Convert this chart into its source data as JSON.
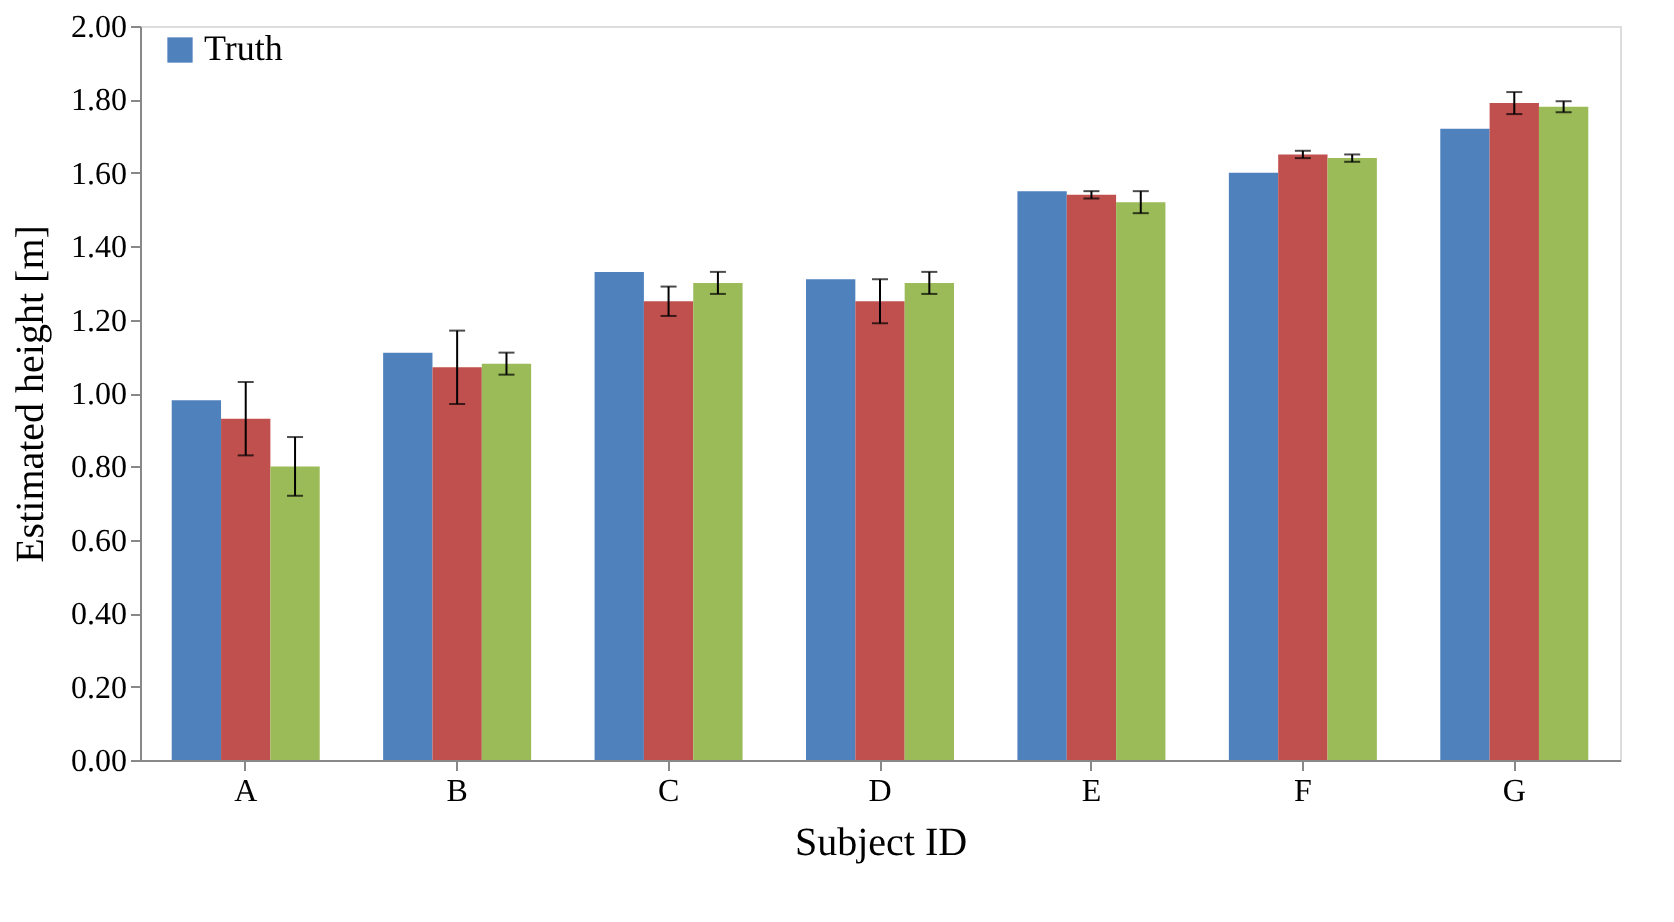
{
  "chart_data": {
    "type": "bar",
    "xlabel": "Subject ID",
    "ylabel": "Estimated height [m]",
    "categories": [
      "A",
      "B",
      "C",
      "D",
      "E",
      "F",
      "G"
    ],
    "series": [
      {
        "name": "Truth",
        "color": "#4f81bd",
        "values": [
          0.98,
          1.11,
          1.33,
          1.31,
          1.55,
          1.6,
          1.72
        ]
      },
      {
        "color": "#c0504d",
        "values": [
          0.93,
          1.07,
          1.25,
          1.25,
          1.54,
          1.65,
          1.79
        ],
        "errors": [
          0.1,
          0.1,
          0.04,
          0.06,
          0.01,
          0.01,
          0.03
        ]
      },
      {
        "color": "#9bbb59",
        "values": [
          0.8,
          1.08,
          1.3,
          1.3,
          1.52,
          1.64,
          1.78
        ],
        "errors": [
          0.08,
          0.03,
          0.03,
          0.03,
          0.03,
          0.01,
          0.015
        ]
      }
    ],
    "ylim": [
      0,
      2
    ],
    "yticks": [
      {
        "value": 0,
        "label": "0.00"
      },
      {
        "value": 0.2,
        "label": "0.20"
      },
      {
        "value": 0.4,
        "label": "0.40"
      },
      {
        "value": 0.6,
        "label": "0.60"
      },
      {
        "value": 0.8,
        "label": "0.80"
      },
      {
        "value": 1.0,
        "label": "1.00"
      },
      {
        "value": 1.2,
        "label": "1.20"
      },
      {
        "value": 1.4,
        "label": "1.40"
      },
      {
        "value": 1.6,
        "label": "1.60"
      },
      {
        "value": 1.8,
        "label": "1.80"
      },
      {
        "value": 2.0,
        "label": "2.00"
      }
    ],
    "grid": false,
    "legend": "top left"
  }
}
